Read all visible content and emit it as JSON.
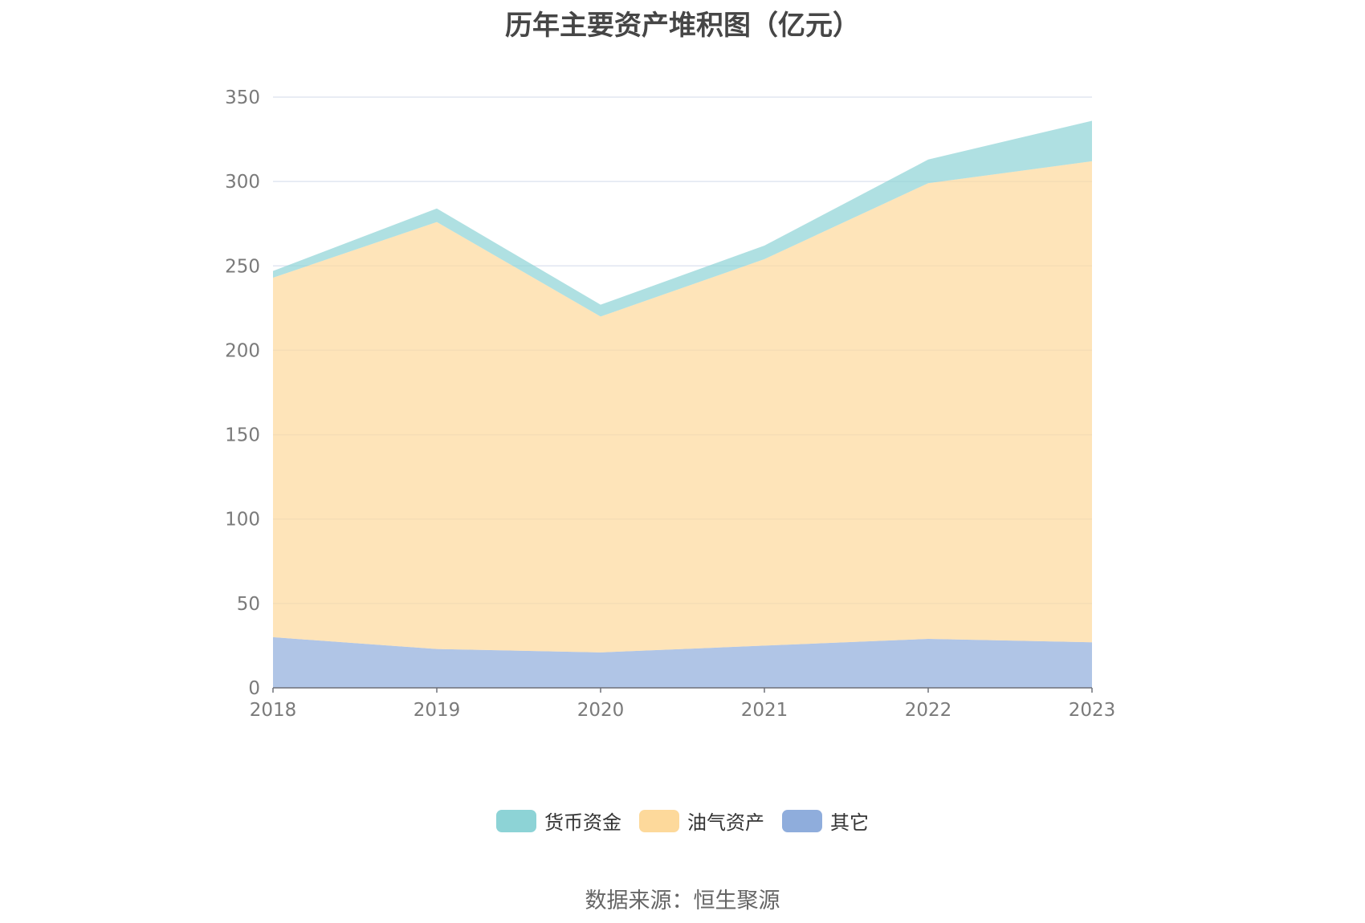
{
  "chart_data": {
    "type": "area",
    "stacked": true,
    "title": "历年主要资产堆积图（亿元）",
    "categories": [
      "2018",
      "2019",
      "2020",
      "2021",
      "2022",
      "2023"
    ],
    "series": [
      {
        "name": "其它",
        "values": [
          30,
          23,
          21,
          25,
          29,
          27
        ],
        "color": "#8faddc"
      },
      {
        "name": "油气资产",
        "values": [
          213,
          253,
          199,
          229,
          270,
          285
        ],
        "color": "#fdd99b"
      },
      {
        "name": "货币资金",
        "values": [
          4,
          8,
          7,
          8,
          14,
          24
        ],
        "color": "#8dd3d6"
      }
    ],
    "legend_order": [
      "货币资金",
      "油气资产",
      "其它"
    ],
    "ylim": [
      0,
      350
    ],
    "yticks": [
      0,
      50,
      100,
      150,
      200,
      250,
      300,
      350
    ],
    "grid": true,
    "legend_position": "bottom"
  },
  "source": "数据来源：恒生聚源"
}
